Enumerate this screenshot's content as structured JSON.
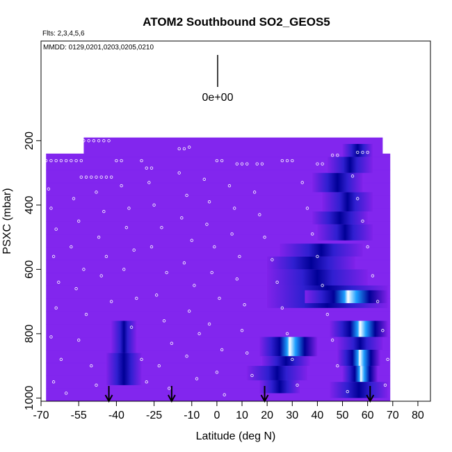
{
  "chart_data": {
    "type": "heatmap",
    "title": "ATOM2 Southbound SO2_GEOS5",
    "subtitle_flights": "Flts: 2,3,4,5,6",
    "subtitle_dates": "MMDD: 0129,0201,0203,0205,0210",
    "xlabel": "Latitude (deg N)",
    "ylabel": "PSXC (mbar)",
    "x_ticks": [
      -70,
      -55,
      -40,
      -25,
      -10,
      0,
      10,
      20,
      30,
      40,
      50,
      60,
      70,
      80
    ],
    "x_tick_labels": [
      "-70",
      "-55",
      "-40",
      "-25",
      "-10",
      "0",
      "10",
      "20",
      "30",
      "40",
      "50",
      "60",
      "70",
      "80"
    ],
    "xlim": [
      -70,
      85
    ],
    "y_ticks": [
      200,
      400,
      600,
      800,
      1000
    ],
    "y_tick_labels": [
      "200",
      "400",
      "600",
      "800",
      "1000"
    ],
    "ylim": [
      1010,
      -110
    ],
    "y_reversed": true,
    "grid": false,
    "colorbar_label": "0e+00",
    "colors": {
      "background_field": "#8226ee",
      "low": "#7f22ea",
      "mid": "#2f1fd0",
      "deep": "#000096",
      "high": "#1ea0ff",
      "peak": "#ffffff",
      "marker": "#ffffff"
    },
    "field_extent": {
      "lat": [
        -68,
        69
      ],
      "pressure_top": 190,
      "pressure_bottom": 1010
    },
    "blobs": [
      {
        "lat": [
          -42,
          -32
        ],
        "p": [
          760,
          860
        ],
        "level": "deep"
      },
      {
        "lat": [
          -44,
          -30
        ],
        "p": [
          860,
          960
        ],
        "level": "mid"
      },
      {
        "lat": [
          17,
          40
        ],
        "p": [
          810,
          870
        ],
        "level": "high"
      },
      {
        "lat": [
          18,
          37
        ],
        "p": [
          870,
          900
        ],
        "level": "mid"
      },
      {
        "lat": [
          12,
          36
        ],
        "p": [
          900,
          945
        ],
        "level": "deep"
      },
      {
        "lat": [
          17,
          33
        ],
        "p": [
          945,
          985
        ],
        "level": "mid"
      },
      {
        "lat": [
          45,
          68
        ],
        "p": [
          760,
          810
        ],
        "level": "high"
      },
      {
        "lat": [
          48,
          66
        ],
        "p": [
          810,
          850
        ],
        "level": "deep"
      },
      {
        "lat": [
          48,
          65
        ],
        "p": [
          850,
          900
        ],
        "level": "high"
      },
      {
        "lat": [
          50,
          64
        ],
        "p": [
          900,
          950
        ],
        "level": "high"
      },
      {
        "lat": [
          45,
          68
        ],
        "p": [
          950,
          1000
        ],
        "level": "mid"
      },
      {
        "lat": [
          20,
          68
        ],
        "p": [
          650,
          720
        ],
        "level": "mid"
      },
      {
        "lat": [
          35,
          68
        ],
        "p": [
          665,
          705
        ],
        "level": "high"
      },
      {
        "lat": [
          20,
          60
        ],
        "p": [
          600,
          650
        ],
        "level": "deep"
      },
      {
        "lat": [
          20,
          55
        ],
        "p": [
          560,
          600
        ],
        "level": "mid"
      },
      {
        "lat": [
          25,
          58
        ],
        "p": [
          520,
          560
        ],
        "level": "deep"
      },
      {
        "lat": [
          40,
          62
        ],
        "p": [
          460,
          510
        ],
        "level": "deep"
      },
      {
        "lat": [
          38,
          60
        ],
        "p": [
          420,
          460
        ],
        "level": "mid"
      },
      {
        "lat": [
          42,
          62
        ],
        "p": [
          360,
          420
        ],
        "level": "deep"
      },
      {
        "lat": [
          38,
          58
        ],
        "p": [
          300,
          360
        ],
        "level": "mid"
      },
      {
        "lat": [
          44,
          62
        ],
        "p": [
          250,
          300
        ],
        "level": "deep"
      },
      {
        "lat": [
          50,
          62
        ],
        "p": [
          210,
          250
        ],
        "level": "mid"
      }
    ],
    "flight_markers": [
      {
        "lat": -68,
        "p": 262
      },
      {
        "lat": -66,
        "p": 262
      },
      {
        "lat": -64,
        "p": 262
      },
      {
        "lat": -62,
        "p": 262
      },
      {
        "lat": -60,
        "p": 262
      },
      {
        "lat": -58,
        "p": 262
      },
      {
        "lat": -56,
        "p": 262
      },
      {
        "lat": -54,
        "p": 262
      },
      {
        "lat": -53,
        "p": 200
      },
      {
        "lat": -51,
        "p": 200
      },
      {
        "lat": -49,
        "p": 200
      },
      {
        "lat": -47,
        "p": 200
      },
      {
        "lat": -45,
        "p": 200
      },
      {
        "lat": -43,
        "p": 200
      },
      {
        "lat": -54,
        "p": 313
      },
      {
        "lat": -52,
        "p": 313
      },
      {
        "lat": -50,
        "p": 313
      },
      {
        "lat": -48,
        "p": 313
      },
      {
        "lat": -46,
        "p": 313
      },
      {
        "lat": -44,
        "p": 313
      },
      {
        "lat": -42,
        "p": 313
      },
      {
        "lat": -40,
        "p": 262
      },
      {
        "lat": -38,
        "p": 262
      },
      {
        "lat": -30,
        "p": 262
      },
      {
        "lat": -28,
        "p": 285
      },
      {
        "lat": -26,
        "p": 285
      },
      {
        "lat": -15,
        "p": 225
      },
      {
        "lat": -13,
        "p": 225
      },
      {
        "lat": -11,
        "p": 220
      },
      {
        "lat": 0,
        "p": 262
      },
      {
        "lat": 2,
        "p": 262
      },
      {
        "lat": 8,
        "p": 272
      },
      {
        "lat": 10,
        "p": 272
      },
      {
        "lat": 12,
        "p": 272
      },
      {
        "lat": 16,
        "p": 272
      },
      {
        "lat": 18,
        "p": 272
      },
      {
        "lat": 26,
        "p": 262
      },
      {
        "lat": 28,
        "p": 262
      },
      {
        "lat": 30,
        "p": 262
      },
      {
        "lat": 40,
        "p": 272
      },
      {
        "lat": 42,
        "p": 272
      },
      {
        "lat": 46,
        "p": 245
      },
      {
        "lat": 48,
        "p": 245
      },
      {
        "lat": 56,
        "p": 236
      },
      {
        "lat": 58,
        "p": 236
      },
      {
        "lat": 60,
        "p": 236
      },
      {
        "lat": -67,
        "p": 350
      },
      {
        "lat": -66,
        "p": 410
      },
      {
        "lat": -64,
        "p": 475
      },
      {
        "lat": -65,
        "p": 560
      },
      {
        "lat": -63,
        "p": 640
      },
      {
        "lat": -64,
        "p": 720
      },
      {
        "lat": -66,
        "p": 810
      },
      {
        "lat": -62,
        "p": 880
      },
      {
        "lat": -65,
        "p": 950
      },
      {
        "lat": -60,
        "p": 985
      },
      {
        "lat": -57,
        "p": 380
      },
      {
        "lat": -55,
        "p": 450
      },
      {
        "lat": -58,
        "p": 530
      },
      {
        "lat": -53,
        "p": 600
      },
      {
        "lat": -56,
        "p": 660
      },
      {
        "lat": -52,
        "p": 740
      },
      {
        "lat": -55,
        "p": 820
      },
      {
        "lat": -50,
        "p": 900
      },
      {
        "lat": -48,
        "p": 960
      },
      {
        "lat": -48,
        "p": 360
      },
      {
        "lat": -45,
        "p": 420
      },
      {
        "lat": -47,
        "p": 500
      },
      {
        "lat": -44,
        "p": 560
      },
      {
        "lat": -46,
        "p": 620
      },
      {
        "lat": -42,
        "p": 700
      },
      {
        "lat": -38,
        "p": 340
      },
      {
        "lat": -35,
        "p": 410
      },
      {
        "lat": -36,
        "p": 470
      },
      {
        "lat": -33,
        "p": 540
      },
      {
        "lat": -37,
        "p": 600
      },
      {
        "lat": -32,
        "p": 690
      },
      {
        "lat": -34,
        "p": 780
      },
      {
        "lat": -30,
        "p": 880
      },
      {
        "lat": -28,
        "p": 950
      },
      {
        "lat": -27,
        "p": 330
      },
      {
        "lat": -25,
        "p": 400
      },
      {
        "lat": -22,
        "p": 470
      },
      {
        "lat": -26,
        "p": 530
      },
      {
        "lat": -20,
        "p": 610
      },
      {
        "lat": -24,
        "p": 680
      },
      {
        "lat": -21,
        "p": 760
      },
      {
        "lat": -18,
        "p": 830
      },
      {
        "lat": -23,
        "p": 900
      },
      {
        "lat": -19,
        "p": 970
      },
      {
        "lat": -15,
        "p": 300
      },
      {
        "lat": -12,
        "p": 370
      },
      {
        "lat": -14,
        "p": 440
      },
      {
        "lat": -10,
        "p": 510
      },
      {
        "lat": -13,
        "p": 580
      },
      {
        "lat": -9,
        "p": 650
      },
      {
        "lat": -11,
        "p": 730
      },
      {
        "lat": -7,
        "p": 800
      },
      {
        "lat": -12,
        "p": 870
      },
      {
        "lat": -8,
        "p": 940
      },
      {
        "lat": -5,
        "p": 320
      },
      {
        "lat": -3,
        "p": 390
      },
      {
        "lat": -4,
        "p": 460
      },
      {
        "lat": -1,
        "p": 530
      },
      {
        "lat": -2,
        "p": 610
      },
      {
        "lat": 1,
        "p": 690
      },
      {
        "lat": -3,
        "p": 770
      },
      {
        "lat": 2,
        "p": 850
      },
      {
        "lat": 0,
        "p": 920
      },
      {
        "lat": 3,
        "p": 990
      },
      {
        "lat": 5,
        "p": 340
      },
      {
        "lat": 7,
        "p": 410
      },
      {
        "lat": 6,
        "p": 490
      },
      {
        "lat": 9,
        "p": 560
      },
      {
        "lat": 8,
        "p": 630
      },
      {
        "lat": 11,
        "p": 710
      },
      {
        "lat": 10,
        "p": 790
      },
      {
        "lat": 12,
        "p": 860
      },
      {
        "lat": 14,
        "p": 930
      },
      {
        "lat": 15,
        "p": 360
      },
      {
        "lat": 17,
        "p": 430
      },
      {
        "lat": 19,
        "p": 500
      },
      {
        "lat": 22,
        "p": 570
      },
      {
        "lat": 24,
        "p": 640
      },
      {
        "lat": 26,
        "p": 720
      },
      {
        "lat": 28,
        "p": 800
      },
      {
        "lat": 30,
        "p": 880
      },
      {
        "lat": 32,
        "p": 960
      },
      {
        "lat": 34,
        "p": 330
      },
      {
        "lat": 36,
        "p": 410
      },
      {
        "lat": 38,
        "p": 490
      },
      {
        "lat": 40,
        "p": 560
      },
      {
        "lat": 42,
        "p": 650
      },
      {
        "lat": 44,
        "p": 740
      },
      {
        "lat": 46,
        "p": 820
      },
      {
        "lat": 48,
        "p": 900
      },
      {
        "lat": 52,
        "p": 980
      },
      {
        "lat": 54,
        "p": 310
      },
      {
        "lat": 56,
        "p": 380
      },
      {
        "lat": 58,
        "p": 450
      },
      {
        "lat": 60,
        "p": 530
      },
      {
        "lat": 62,
        "p": 620
      },
      {
        "lat": 64,
        "p": 700
      },
      {
        "lat": 66,
        "p": 790
      },
      {
        "lat": 68,
        "p": 880
      },
      {
        "lat": 67,
        "p": 960
      }
    ],
    "bottom_arrows": [
      {
        "lat": -43
      },
      {
        "lat": -18
      },
      {
        "lat": 19
      },
      {
        "lat": 61
      }
    ]
  }
}
